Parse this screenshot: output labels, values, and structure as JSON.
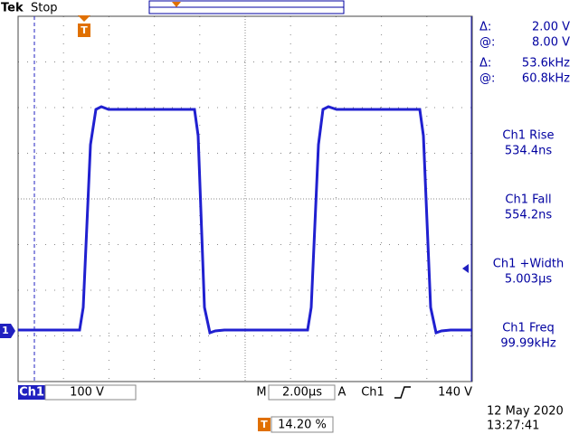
{
  "header": {
    "brand": "Tek",
    "status": "Stop"
  },
  "markers": {
    "trigger": "T",
    "channel": "1"
  },
  "cursors": [
    {
      "symbol": "Δ:",
      "value": "2.00 V"
    },
    {
      "symbol": "@:",
      "value": "8.00 V"
    },
    {
      "symbol": "Δ:",
      "value": "53.6kHz"
    },
    {
      "symbol": "@:",
      "value": "60.8kHz"
    }
  ],
  "measurements": [
    {
      "label": "Ch1 Rise",
      "value": "534.4ns"
    },
    {
      "label": "Ch1 Fall",
      "value": "554.2ns"
    },
    {
      "label": "Ch1 +Width",
      "value": "5.003µs"
    },
    {
      "label": "Ch1 Freq",
      "value": "99.99kHz"
    }
  ],
  "footer": {
    "channel": "Ch1",
    "scale": "100 V",
    "timebase_prefix": "M",
    "timebase": "2.00µs",
    "trigger_prefix": "A",
    "trigger_source": "Ch1",
    "trigger_level": "140 V",
    "date": "12 May 2020",
    "time": "13:27:41",
    "trigger_position": "14.20 %"
  }
}
